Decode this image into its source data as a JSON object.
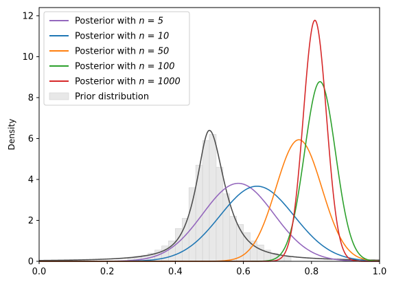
{
  "chart_data": {
    "type": "line",
    "ylabel": "Density",
    "xlabel": "",
    "xlim": [
      0.0,
      1.0
    ],
    "ylim": [
      0,
      12.4
    ],
    "x_ticks": [
      0.0,
      0.2,
      0.4,
      0.6,
      0.8,
      1.0
    ],
    "x_tick_labels": [
      "0.0",
      "0.2",
      "0.4",
      "0.6",
      "0.8",
      "1.0"
    ],
    "y_ticks": [
      0,
      2,
      4,
      6,
      8,
      10,
      12
    ],
    "y_tick_labels": [
      "0",
      "2",
      "4",
      "6",
      "8",
      "10",
      "12"
    ],
    "legend_position": "top-left",
    "series": [
      {
        "name": "Posterior with n = 5",
        "name_prefix": "Posterior with ",
        "name_math": "n = 5",
        "color": "#9467bd",
        "mean": 0.585,
        "sd": 0.1048,
        "peak": 3.81
      },
      {
        "name": "Posterior with n = 10",
        "name_prefix": "Posterior with ",
        "name_math": "n = 10",
        "color": "#1f77b4",
        "mean": 0.64,
        "sd": 0.1088,
        "peak": 3.67
      },
      {
        "name": "Posterior with n = 50",
        "name_prefix": "Posterior with ",
        "name_math": "n = 50",
        "color": "#ff7f0e",
        "mean": 0.763,
        "sd": 0.0672,
        "peak": 5.94
      },
      {
        "name": "Posterior with n = 100",
        "name_prefix": "Posterior with ",
        "name_math": "n = 100",
        "color": "#2ca02c",
        "mean": 0.825,
        "sd": 0.0455,
        "peak": 8.78
      },
      {
        "name": "Posterior with n = 1000",
        "name_prefix": "Posterior with ",
        "name_math": "n = 1000",
        "color": "#d62728",
        "mean": 0.81,
        "sd": 0.0339,
        "peak": 11.78
      }
    ],
    "prior": {
      "legend_label": "Prior distribution",
      "curve_color": "#4d4d4d",
      "hist_color": "#e8e8e8",
      "center": 0.5,
      "peak": 6.4,
      "bins": [
        {
          "x0": 0.26,
          "x1": 0.28,
          "h": 0.2
        },
        {
          "x0": 0.28,
          "x1": 0.3,
          "h": 0.25
        },
        {
          "x0": 0.3,
          "x1": 0.32,
          "h": 0.3
        },
        {
          "x0": 0.32,
          "x1": 0.34,
          "h": 0.4
        },
        {
          "x0": 0.34,
          "x1": 0.36,
          "h": 0.55
        },
        {
          "x0": 0.36,
          "x1": 0.38,
          "h": 0.75
        },
        {
          "x0": 0.38,
          "x1": 0.4,
          "h": 1.0
        },
        {
          "x0": 0.4,
          "x1": 0.42,
          "h": 1.6
        },
        {
          "x0": 0.42,
          "x1": 0.44,
          "h": 2.1
        },
        {
          "x0": 0.44,
          "x1": 0.46,
          "h": 3.6
        },
        {
          "x0": 0.46,
          "x1": 0.48,
          "h": 4.7
        },
        {
          "x0": 0.48,
          "x1": 0.5,
          "h": 5.9
        },
        {
          "x0": 0.5,
          "x1": 0.52,
          "h": 6.2
        },
        {
          "x0": 0.52,
          "x1": 0.54,
          "h": 4.6
        },
        {
          "x0": 0.54,
          "x1": 0.56,
          "h": 3.3
        },
        {
          "x0": 0.56,
          "x1": 0.58,
          "h": 2.2
        },
        {
          "x0": 0.58,
          "x1": 0.6,
          "h": 1.8
        },
        {
          "x0": 0.6,
          "x1": 0.62,
          "h": 1.4
        },
        {
          "x0": 0.62,
          "x1": 0.64,
          "h": 1.0
        },
        {
          "x0": 0.64,
          "x1": 0.66,
          "h": 0.8
        },
        {
          "x0": 0.66,
          "x1": 0.68,
          "h": 0.55
        },
        {
          "x0": 0.68,
          "x1": 0.7,
          "h": 0.4
        },
        {
          "x0": 0.7,
          "x1": 0.72,
          "h": 0.3
        },
        {
          "x0": 0.72,
          "x1": 0.74,
          "h": 0.22
        }
      ]
    }
  }
}
